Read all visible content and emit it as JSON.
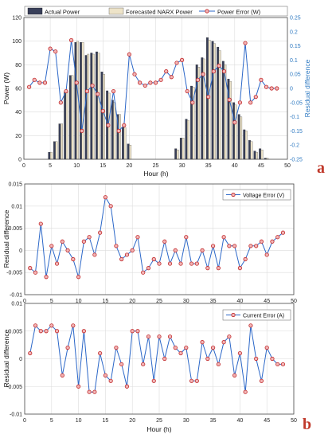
{
  "panel_labels": {
    "a": "a",
    "b": "b"
  },
  "colors": {
    "actual_power": "#383f59",
    "forecast_power": "#ede3c8",
    "error_line": "#2b67c8",
    "marker_fill": "#f2b5b5",
    "marker_edge": "#c0282a",
    "right_axis": "#2f7ac2",
    "grid": "#dcdcdc",
    "panel_letter": "#c0392b"
  },
  "chart_data": [
    {
      "id": "power",
      "type": "bar",
      "xlabel": "Hour (h)",
      "ylabel": "Power (W)",
      "ylabel_right": "Residual difference",
      "xlim": [
        0,
        50
      ],
      "ylim": [
        0,
        120
      ],
      "ylim_right": [
        -0.25,
        0.25
      ],
      "xticks": [
        "0",
        "5",
        "10",
        "15",
        "20",
        "25",
        "30",
        "35",
        "40",
        "45",
        "50"
      ],
      "yticks": [
        "0",
        "20",
        "40",
        "60",
        "80",
        "100",
        "120"
      ],
      "yticks_right": [
        "-0.25",
        "-0.2",
        "-0.15",
        "-0.1",
        "-0.05",
        "0",
        "0.05",
        "0.1",
        "0.15",
        "0.2",
        "0.25"
      ],
      "grid": true,
      "legend_position": "top",
      "x": [
        1,
        2,
        3,
        4,
        5,
        6,
        7,
        8,
        9,
        10,
        11,
        12,
        13,
        14,
        15,
        16,
        17,
        18,
        19,
        20,
        21,
        22,
        23,
        24,
        25,
        26,
        27,
        28,
        29,
        30,
        31,
        32,
        33,
        34,
        35,
        36,
        37,
        38,
        39,
        40,
        41,
        42,
        43,
        44,
        45,
        46,
        47,
        48
      ],
      "series": [
        {
          "name": "Actual Power",
          "kind": "bar",
          "axis": "left",
          "values": [
            0,
            0,
            0,
            0,
            6,
            15,
            30,
            57,
            71,
            99,
            99,
            88,
            90,
            91,
            74,
            58,
            50,
            38,
            27,
            13,
            0,
            0,
            0,
            0,
            0,
            0,
            0,
            0,
            9,
            18,
            34,
            62,
            80,
            86,
            103,
            100,
            95,
            83,
            68,
            48,
            38,
            25,
            16,
            7,
            9,
            1,
            0,
            0
          ]
        },
        {
          "name": "Forecasted NARX Power",
          "kind": "bar",
          "axis": "left",
          "values": [
            0,
            0,
            0,
            0,
            6,
            15,
            30,
            57,
            71,
            100,
            99,
            89,
            89,
            90,
            72,
            56,
            48,
            38,
            27,
            12,
            0,
            0,
            0,
            0,
            0,
            0,
            0,
            0,
            8,
            18,
            33,
            61,
            78,
            85,
            101,
            98,
            92,
            80,
            66,
            46,
            36,
            24,
            15,
            6,
            8,
            1,
            0,
            0
          ]
        },
        {
          "name": "Power Error (W)",
          "kind": "line",
          "axis": "right",
          "values": [
            0.005,
            0.03,
            0.02,
            0.02,
            0.14,
            0.13,
            -0.05,
            -0.01,
            0.17,
            0.02,
            -0.15,
            -0.01,
            0.01,
            -0.02,
            -0.08,
            -0.13,
            -0.01,
            -0.15,
            -0.13,
            0.12,
            0.05,
            0.02,
            0.01,
            0.02,
            0.02,
            0.03,
            0.06,
            0.04,
            0.09,
            0.1,
            -0.01,
            -0.05,
            0.03,
            0.05,
            -0.03,
            0.06,
            0.08,
            0.06,
            -0.04,
            -0.12,
            -0.05,
            0.16,
            -0.05,
            -0.03,
            0.03,
            0.005,
            0.0,
            0.0
          ]
        }
      ]
    },
    {
      "id": "voltage",
      "type": "line",
      "xlabel": "",
      "ylabel": "Residual difference",
      "xlim": [
        0,
        50
      ],
      "ylim": [
        -0.01,
        0.015
      ],
      "xticks": [
        "0",
        "5",
        "10",
        "15",
        "20",
        "25",
        "30",
        "35",
        "40",
        "45",
        "50"
      ],
      "yticks": [
        "-0.01",
        "-0.005",
        "0",
        "0.005",
        "0.01",
        "0.015"
      ],
      "grid": true,
      "legend_position": "top-right",
      "x": [
        1,
        2,
        3,
        4,
        5,
        6,
        7,
        8,
        9,
        10,
        11,
        12,
        13,
        14,
        15,
        16,
        17,
        18,
        19,
        20,
        21,
        22,
        23,
        24,
        25,
        26,
        27,
        28,
        29,
        30,
        31,
        32,
        33,
        34,
        35,
        36,
        37,
        38,
        39,
        40,
        41,
        42,
        43,
        44,
        45,
        46,
        47,
        48
      ],
      "series": [
        {
          "name": "Voltage Error (V)",
          "values": [
            -0.004,
            -0.005,
            0.006,
            -0.006,
            0.001,
            -0.003,
            0.002,
            0.0,
            -0.002,
            -0.006,
            0.002,
            0.003,
            -0.001,
            0.004,
            0.012,
            0.01,
            0.001,
            -0.002,
            -0.001,
            0.0,
            0.003,
            -0.005,
            -0.004,
            -0.002,
            -0.003,
            0.002,
            -0.003,
            0.0,
            -0.003,
            0.003,
            -0.003,
            -0.003,
            0.0,
            -0.004,
            0.001,
            -0.004,
            0.003,
            0.001,
            0.001,
            -0.004,
            -0.002,
            0.001,
            0.001,
            0.002,
            -0.001,
            0.002,
            0.003,
            0.004
          ]
        }
      ]
    },
    {
      "id": "current",
      "type": "line",
      "xlabel": "Hour (h)",
      "ylabel": "Residual difference",
      "xlim": [
        0,
        50
      ],
      "ylim": [
        -0.01,
        0.01
      ],
      "xticks": [
        "0",
        "5",
        "10",
        "15",
        "20",
        "25",
        "30",
        "35",
        "40",
        "45",
        "50"
      ],
      "yticks": [
        "-0.01",
        "-0.005",
        "0",
        "0.005",
        "0.01"
      ],
      "grid": true,
      "legend_position": "top-right",
      "x": [
        1,
        2,
        3,
        4,
        5,
        6,
        7,
        8,
        9,
        10,
        11,
        12,
        13,
        14,
        15,
        16,
        17,
        18,
        19,
        20,
        21,
        22,
        23,
        24,
        25,
        26,
        27,
        28,
        29,
        30,
        31,
        32,
        33,
        34,
        35,
        36,
        37,
        38,
        39,
        40,
        41,
        42,
        43,
        44,
        45,
        46,
        47,
        48
      ],
      "series": [
        {
          "name": "Current Error (A)",
          "values": [
            0.001,
            0.006,
            0.005,
            0.005,
            0.006,
            0.005,
            -0.003,
            0.002,
            0.006,
            -0.005,
            0.005,
            -0.006,
            -0.006,
            0.001,
            -0.003,
            -0.004,
            0.002,
            -0.001,
            -0.005,
            0.005,
            0.005,
            -0.001,
            0.004,
            -0.004,
            0.004,
            0.0,
            0.004,
            0.002,
            0.001,
            0.002,
            -0.004,
            -0.004,
            0.003,
            0.0,
            0.002,
            -0.001,
            0.003,
            0.004,
            -0.003,
            0.001,
            -0.006,
            0.006,
            0.0,
            -0.004,
            0.002,
            0.0,
            -0.001,
            -0.001
          ]
        }
      ]
    }
  ]
}
